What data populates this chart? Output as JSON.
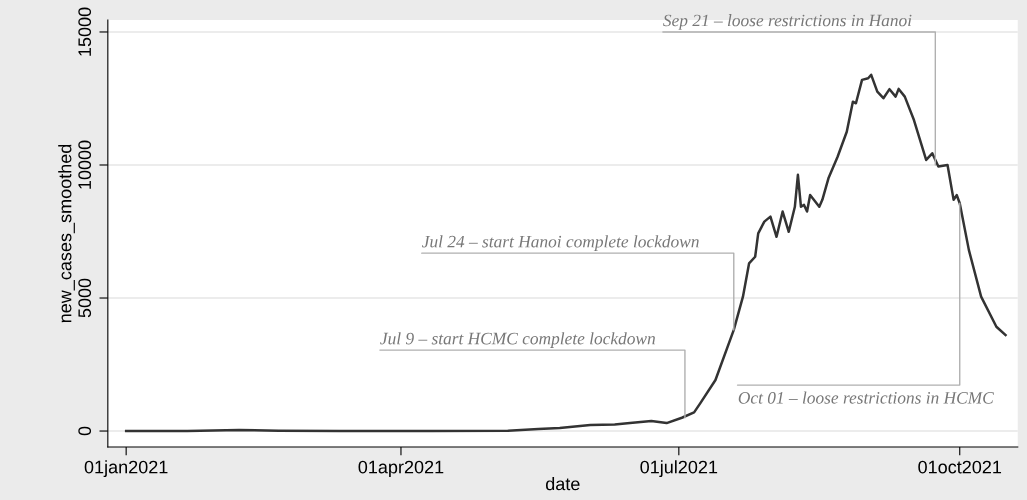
{
  "chart_data": {
    "type": "line",
    "xlabel": "date",
    "ylabel": "new_cases_smoothed",
    "x": [
      "2021-01-01",
      "2021-01-21",
      "2021-02-07",
      "2021-02-20",
      "2021-03-12",
      "2021-04-11",
      "2021-05-06",
      "2021-05-16",
      "2021-05-23",
      "2021-06-02",
      "2021-06-10",
      "2021-06-15",
      "2021-06-22",
      "2021-06-27",
      "2021-07-02",
      "2021-07-06",
      "2021-07-08",
      "2021-07-13",
      "2021-07-19",
      "2021-07-22",
      "2021-07-24",
      "2021-07-26",
      "2021-07-27",
      "2021-07-29",
      "2021-07-31",
      "2021-08-02",
      "2021-08-04",
      "2021-08-06",
      "2021-08-08",
      "2021-08-09",
      "2021-08-10",
      "2021-08-11",
      "2021-08-12",
      "2021-08-13",
      "2021-08-16",
      "2021-08-17",
      "2021-08-19",
      "2021-08-22",
      "2021-08-25",
      "2021-08-27",
      "2021-08-28",
      "2021-08-30",
      "2021-09-01",
      "2021-09-02",
      "2021-09-04",
      "2021-09-06",
      "2021-09-08",
      "2021-09-10",
      "2021-09-11",
      "2021-09-13",
      "2021-09-16",
      "2021-09-20",
      "2021-09-22",
      "2021-09-24",
      "2021-09-27",
      "2021-09-29",
      "2021-09-30",
      "2021-10-01",
      "2021-10-04",
      "2021-10-08",
      "2021-10-13",
      "2021-10-16"
    ],
    "series": [
      {
        "color": "#333333",
        "values": [
          0,
          0,
          40,
          10,
          0,
          0,
          10,
          80,
          110,
          230,
          250,
          300,
          380,
          300,
          500,
          700,
          1040,
          1920,
          3800,
          5050,
          6300,
          6550,
          7430,
          7870,
          8060,
          7300,
          8250,
          7490,
          8430,
          9630,
          8430,
          8500,
          8250,
          8870,
          8430,
          8690,
          9500,
          10310,
          11250,
          12380,
          12320,
          13200,
          13260,
          13390,
          12760,
          12510,
          12850,
          12570,
          12860,
          12570,
          11690,
          10190,
          10440,
          9940,
          10000,
          8690,
          8870,
          8560,
          6800,
          5050,
          3920,
          3610
        ]
      }
    ],
    "xlim": [
      "2020-12-26",
      "2021-10-20"
    ],
    "xticks": [
      {
        "value": "2021-01-01",
        "label": "01jan2021"
      },
      {
        "value": "2021-04-01",
        "label": "01apr2021"
      },
      {
        "value": "2021-07-01",
        "label": "01jul2021"
      },
      {
        "value": "2021-10-01",
        "label": "01oct2021"
      }
    ],
    "ylim": [
      -600,
      15450
    ],
    "yticks": [
      0,
      5000,
      10000,
      15000
    ],
    "grid": "y",
    "annotations": [
      {
        "text": "Jul 9 – start HCMC complete lockdown",
        "x": "2021-07-03",
        "y": 500
      },
      {
        "text": "Jul 24 – start Hanoi complete lockdown",
        "x": "2021-07-19",
        "y": 3800
      },
      {
        "text": "Sep 21 – loose restrictions in Hanoi",
        "x": "2021-09-23",
        "y": 10000
      },
      {
        "text": "Oct 01 – loose restrictions in HCMC",
        "x": "2021-10-01",
        "y": 8560
      }
    ]
  }
}
